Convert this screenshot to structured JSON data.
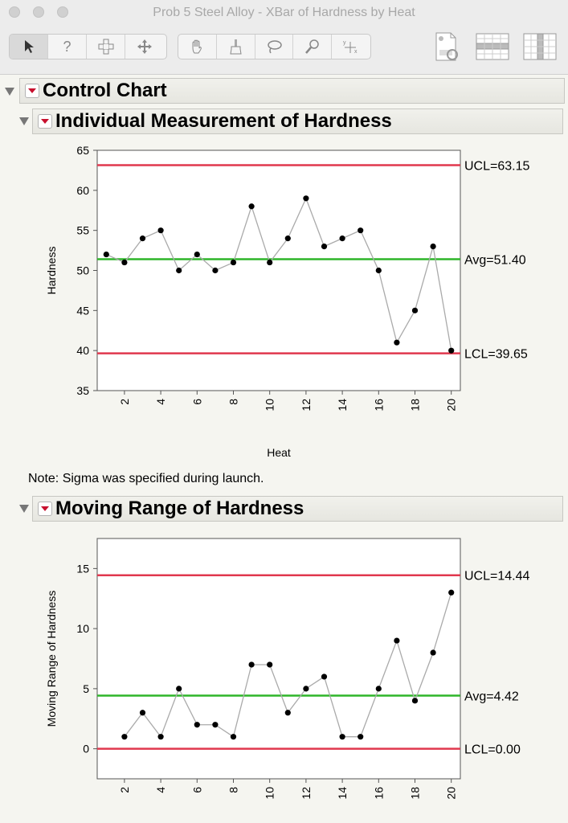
{
  "window": {
    "title": "Prob 5 Steel Alloy - XBar of Hardness by Heat"
  },
  "toolbar": {
    "tools": [
      "arrow-tool",
      "help-tool",
      "crosshair-tool",
      "grabber-tool",
      "hand-tool",
      "brush-tool",
      "lasso-tool",
      "magnifier-tool",
      "annotate-tool"
    ],
    "help_glyph": "?"
  },
  "report": {
    "control_chart_title": "Control Chart",
    "individual_title": "Individual Measurement of Hardness",
    "moving_range_title": "Moving Range of Hardness",
    "note": "Note: Sigma was specified during launch."
  },
  "chart_data": [
    {
      "type": "line",
      "title": "Individual Measurement of Hardness",
      "xlabel": "Heat",
      "ylabel": "Hardness",
      "x": [
        1,
        2,
        3,
        4,
        5,
        6,
        7,
        8,
        9,
        10,
        11,
        12,
        13,
        14,
        15,
        16,
        17,
        18,
        19,
        20
      ],
      "values": [
        52,
        51,
        54,
        55,
        50,
        52,
        50,
        51,
        58,
        51,
        54,
        59,
        53,
        54,
        55,
        50,
        41,
        45,
        53,
        40
      ],
      "xlim": [
        0.5,
        20.5
      ],
      "ylim": [
        35,
        65
      ],
      "yticks": [
        35,
        40,
        45,
        50,
        55,
        60,
        65
      ],
      "xticks": [
        2,
        4,
        6,
        8,
        10,
        12,
        14,
        16,
        18,
        20
      ],
      "limits": [
        {
          "label": "UCL=63.15",
          "value": 63.15,
          "color": "#e0384e"
        },
        {
          "label": "Avg=51.40",
          "value": 51.4,
          "color": "#2fb52a"
        },
        {
          "label": "LCL=39.65",
          "value": 39.65,
          "color": "#e0384e"
        }
      ]
    },
    {
      "type": "line",
      "title": "Moving Range of Hardness",
      "xlabel": "",
      "ylabel": "Moving Range of Hardness",
      "x": [
        2,
        3,
        4,
        5,
        6,
        7,
        8,
        9,
        10,
        11,
        12,
        13,
        14,
        15,
        16,
        17,
        18,
        19,
        20
      ],
      "values": [
        1,
        3,
        1,
        5,
        2,
        2,
        1,
        7,
        7,
        3,
        5,
        6,
        1,
        1,
        5,
        9,
        4,
        8,
        13
      ],
      "xlim": [
        0.5,
        20.5
      ],
      "ylim": [
        -2.5,
        17.5
      ],
      "yticks": [
        0,
        5,
        10,
        15
      ],
      "xticks": [
        2,
        4,
        6,
        8,
        10,
        12,
        14,
        16,
        18,
        20
      ],
      "limits": [
        {
          "label": "UCL=14.44",
          "value": 14.44,
          "color": "#e0384e"
        },
        {
          "label": "Avg=4.42",
          "value": 4.42,
          "color": "#2fb52a"
        },
        {
          "label": "LCL=0.00",
          "value": 0.0,
          "color": "#e0384e"
        }
      ]
    }
  ]
}
